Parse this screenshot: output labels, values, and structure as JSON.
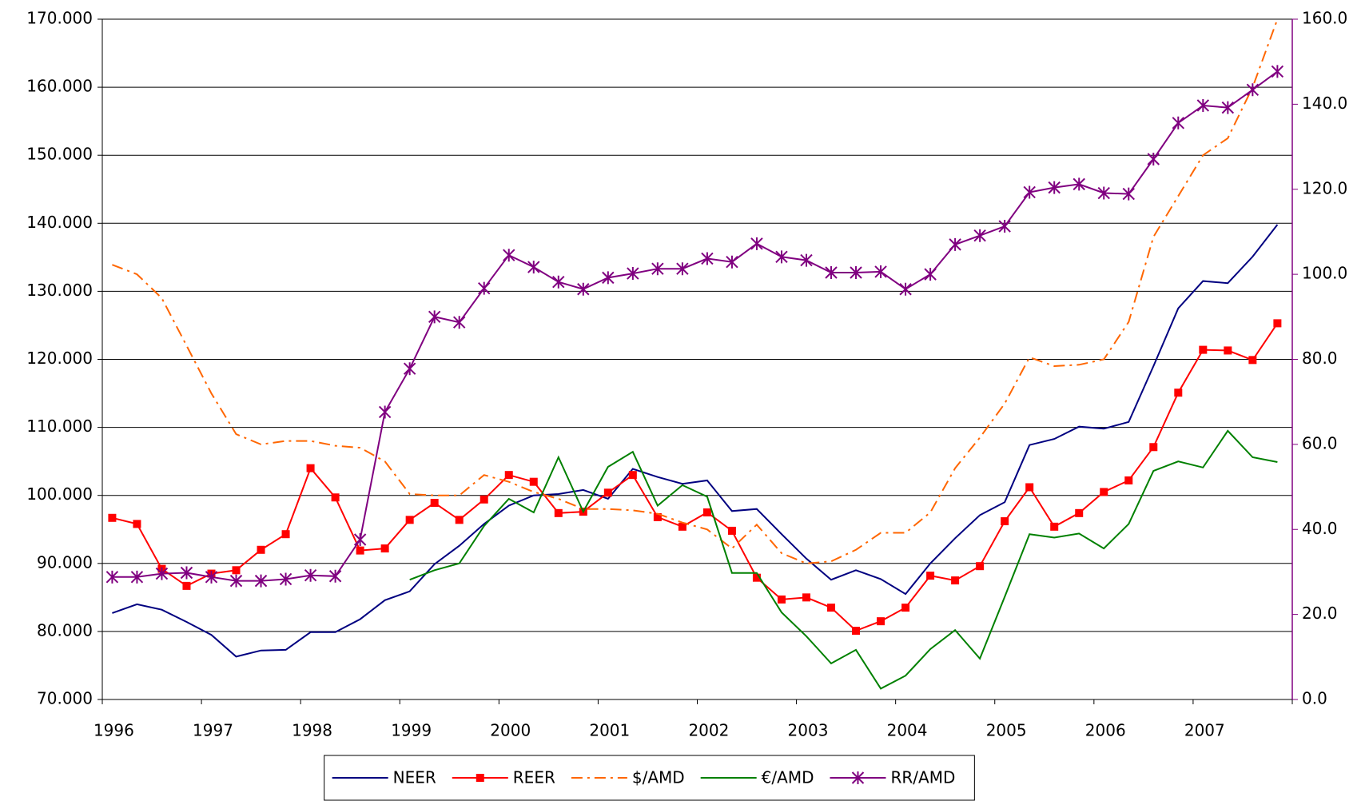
{
  "chart_data": {
    "type": "line",
    "categories": [
      "1996",
      null,
      null,
      null,
      "1997",
      null,
      null,
      null,
      "1998",
      null,
      null,
      null,
      "1999",
      null,
      null,
      null,
      "2000",
      null,
      null,
      null,
      "2001",
      null,
      null,
      null,
      "2002",
      null,
      null,
      null,
      "2003",
      null,
      null,
      null,
      "2004",
      null,
      null,
      null,
      "2005",
      null,
      null,
      null,
      "2006",
      null,
      null,
      null,
      "2007",
      null,
      null,
      null
    ],
    "ylim": [
      70,
      170
    ],
    "yticks": [
      {
        "value": 70,
        "label": "70.000"
      },
      {
        "value": 80,
        "label": "80.000"
      },
      {
        "value": 90,
        "label": "90.000"
      },
      {
        "value": 100,
        "label": "100.000"
      },
      {
        "value": 110,
        "label": "110.000"
      },
      {
        "value": 120,
        "label": "120.000"
      },
      {
        "value": 130,
        "label": "130.000"
      },
      {
        "value": 140,
        "label": "140.000"
      },
      {
        "value": 150,
        "label": "150.000"
      },
      {
        "value": 160,
        "label": "160.000"
      },
      {
        "value": 170,
        "label": "170.000"
      }
    ],
    "y2lim": [
      0,
      160
    ],
    "y2ticks": [
      {
        "value": 0,
        "label": "0.0"
      },
      {
        "value": 20,
        "label": "20.0"
      },
      {
        "value": 40,
        "label": "40.0"
      },
      {
        "value": 60,
        "label": "60.0"
      },
      {
        "value": 80,
        "label": "80.0"
      },
      {
        "value": 100,
        "label": "100.0"
      },
      {
        "value": 120,
        "label": "120.0"
      },
      {
        "value": 140,
        "label": "140.0"
      },
      {
        "value": 160,
        "label": "160.0"
      }
    ],
    "y2_axis_color": "#800080",
    "grid": true,
    "legend": "bottom",
    "series": [
      {
        "name": "NEER",
        "color": "#000080",
        "marker": "none",
        "dash": "solid",
        "values": [
          82.7,
          84.0,
          83.2,
          81.4,
          79.5,
          76.3,
          77.2,
          77.3,
          79.9,
          79.9,
          81.8,
          84.6,
          85.9,
          89.9,
          92.6,
          95.8,
          98.5,
          100.0,
          100.2,
          100.8,
          99.5,
          103.9,
          102.7,
          101.7,
          102.2,
          97.7,
          98.0,
          94.3,
          90.7,
          87.6,
          89.0,
          87.7,
          85.5,
          90.0,
          93.7,
          97.1,
          99.0,
          107.4,
          108.3,
          110.1,
          109.8,
          110.8,
          119.0,
          127.5,
          131.5,
          131.2,
          135.1,
          139.8
        ]
      },
      {
        "name": "REER",
        "color": "#ff0000",
        "marker": "square",
        "dash": "solid",
        "values": [
          96.7,
          95.8,
          89.2,
          86.7,
          88.5,
          89.0,
          92.0,
          94.3,
          104.0,
          99.7,
          91.9,
          92.2,
          96.4,
          98.9,
          96.4,
          99.4,
          103.0,
          102.0,
          97.4,
          97.6,
          100.4,
          103.0,
          96.8,
          95.4,
          97.5,
          94.8,
          87.9,
          84.7,
          85.0,
          83.5,
          80.1,
          81.5,
          83.5,
          88.2,
          87.5,
          89.6,
          96.2,
          101.2,
          95.4,
          97.4,
          100.5,
          102.2,
          107.1,
          115.1,
          121.4,
          121.3,
          119.9,
          125.3
        ]
      },
      {
        "name": "$/AMD",
        "color": "#ff6600",
        "marker": "none",
        "dash": "dashdot",
        "values": [
          133.9,
          132.5,
          129.0,
          122.0,
          115.0,
          109.0,
          107.5,
          108.0,
          108.0,
          107.3,
          107.0,
          105.0,
          100.2,
          100.0,
          100.0,
          103.0,
          102.0,
          100.5,
          99.5,
          98.0,
          98.0,
          97.8,
          97.3,
          96.0,
          95.0,
          92.2,
          95.7,
          91.5,
          90.0,
          90.3,
          92.0,
          94.5,
          94.5,
          97.5,
          104.0,
          108.5,
          113.5,
          120.3,
          119.0,
          119.2,
          120.0,
          125.5,
          138.0,
          144.0,
          150.0,
          152.5,
          160.0,
          170.0
        ]
      },
      {
        "name": "€/AMD",
        "color": "#008000",
        "marker": "none",
        "dash": "solid",
        "values": [
          null,
          null,
          null,
          null,
          null,
          null,
          null,
          null,
          null,
          null,
          null,
          null,
          87.6,
          89.0,
          90.0,
          95.5,
          99.5,
          97.5,
          105.6,
          97.6,
          104.2,
          106.4,
          98.5,
          101.5,
          99.8,
          88.6,
          88.6,
          82.8,
          79.3,
          75.3,
          77.3,
          71.6,
          73.5,
          77.4,
          80.2,
          76.0,
          85.1,
          94.3,
          93.8,
          94.4,
          92.2,
          95.8,
          103.6,
          105.0,
          104.1,
          109.5,
          105.6,
          104.9
        ]
      },
      {
        "name": "RR/AMD",
        "color": "#800080",
        "marker": "star",
        "dash": "solid",
        "axis": "y2",
        "values": [
          28.8,
          28.8,
          29.6,
          29.8,
          28.8,
          27.9,
          27.9,
          28.3,
          29.2,
          29.0,
          37.6,
          67.6,
          77.8,
          90.0,
          88.7,
          96.7,
          104.5,
          101.7,
          98.2,
          96.5,
          99.2,
          100.2,
          101.3,
          101.3,
          103.7,
          102.9,
          107.2,
          104.1,
          103.3,
          100.4,
          100.4,
          100.6,
          96.5,
          100.0,
          107.0,
          109.1,
          111.3,
          119.3,
          120.4,
          121.2,
          119.1,
          118.9,
          127.1,
          135.6,
          139.7,
          139.2,
          143.4,
          147.7
        ]
      }
    ]
  }
}
